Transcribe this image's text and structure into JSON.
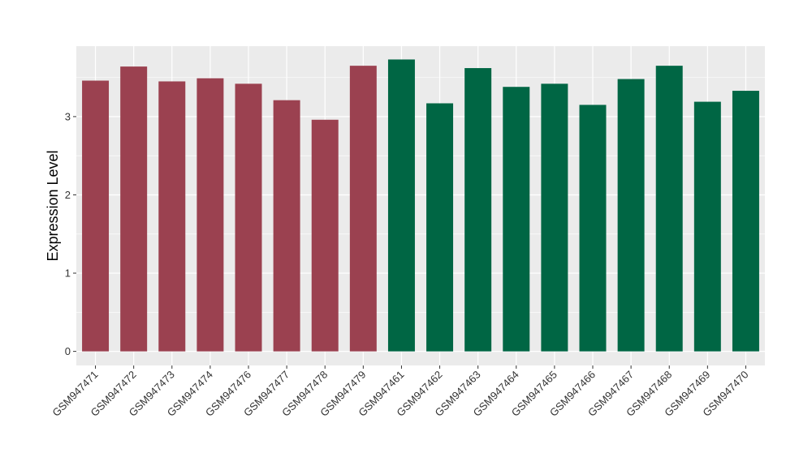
{
  "chart_data": {
    "type": "bar",
    "title": "",
    "xlabel": "",
    "ylabel": "Expression Level",
    "ylim": [
      -0.18,
      3.9
    ],
    "yticks": [
      0,
      1,
      2,
      3
    ],
    "ytick_labels": [
      "0",
      "1",
      "2",
      "3"
    ],
    "grid": true,
    "legend": "none",
    "categories": [
      "GSM947471",
      "GSM947472",
      "GSM947473",
      "GSM947474",
      "GSM947476",
      "GSM947477",
      "GSM947478",
      "GSM947479",
      "GSM947461",
      "GSM947462",
      "GSM947463",
      "GSM947464",
      "GSM947465",
      "GSM947466",
      "GSM947467",
      "GSM947468",
      "GSM947469",
      "GSM947470"
    ],
    "values": [
      3.46,
      3.64,
      3.45,
      3.49,
      3.42,
      3.21,
      2.96,
      3.65,
      3.73,
      3.17,
      3.62,
      3.38,
      3.42,
      3.15,
      3.48,
      3.65,
      3.19,
      3.33
    ],
    "bar_colors": [
      "#9b4150",
      "#9b4150",
      "#9b4150",
      "#9b4150",
      "#9b4150",
      "#9b4150",
      "#9b4150",
      "#9b4150",
      "#006644",
      "#006644",
      "#006644",
      "#006644",
      "#006644",
      "#006644",
      "#006644",
      "#006644",
      "#006644",
      "#006644"
    ],
    "panel_background": "#ebebeb",
    "grid_color": "#ffffff"
  }
}
